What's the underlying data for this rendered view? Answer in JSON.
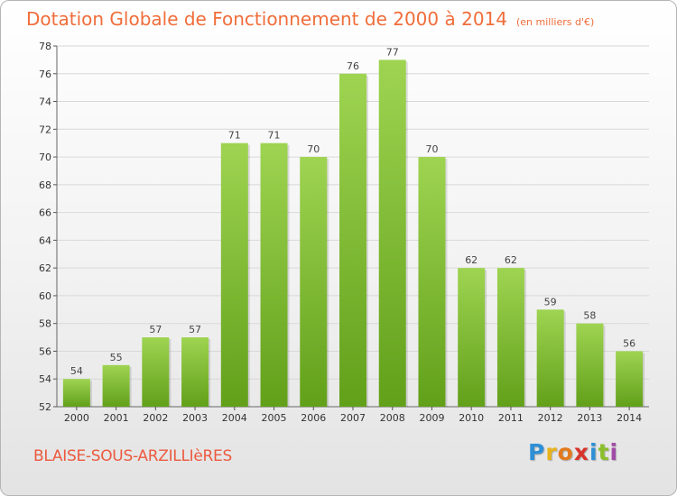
{
  "chart_data": {
    "type": "bar",
    "title": "Dotation Globale de Fonctionnement de 2000 à 2014",
    "subtitle": "(en milliers d'€)",
    "xlabel": "",
    "ylabel": "",
    "categories": [
      "2000",
      "2001",
      "2002",
      "2003",
      "2004",
      "2005",
      "2006",
      "2007",
      "2008",
      "2009",
      "2010",
      "2011",
      "2012",
      "2013",
      "2014"
    ],
    "values": [
      54,
      55,
      57,
      57,
      71,
      71,
      70,
      76,
      77,
      70,
      62,
      62,
      59,
      58,
      56
    ],
    "ylim": [
      52,
      78
    ],
    "yticks": [
      52,
      54,
      56,
      58,
      60,
      62,
      64,
      66,
      68,
      70,
      72,
      74,
      76,
      78
    ],
    "grid": true
  },
  "footer": {
    "commune": "BLAISE-SOUS-ARZILLIèRES",
    "logo_letters": [
      "P",
      "r",
      "o",
      "x",
      "i",
      "t",
      "i"
    ],
    "logo_colors": [
      "#2e8fd6",
      "#e8b21a",
      "#e27a1d",
      "#d8332a",
      "#2e8fd6",
      "#8bbf2a",
      "#a04aa6"
    ]
  },
  "colors": {
    "bar_top": "#9ed451",
    "bar_bottom": "#62a01a",
    "grid": "#d8d8d8",
    "title": "#f06d3a",
    "commune": "#ec5a3f"
  }
}
